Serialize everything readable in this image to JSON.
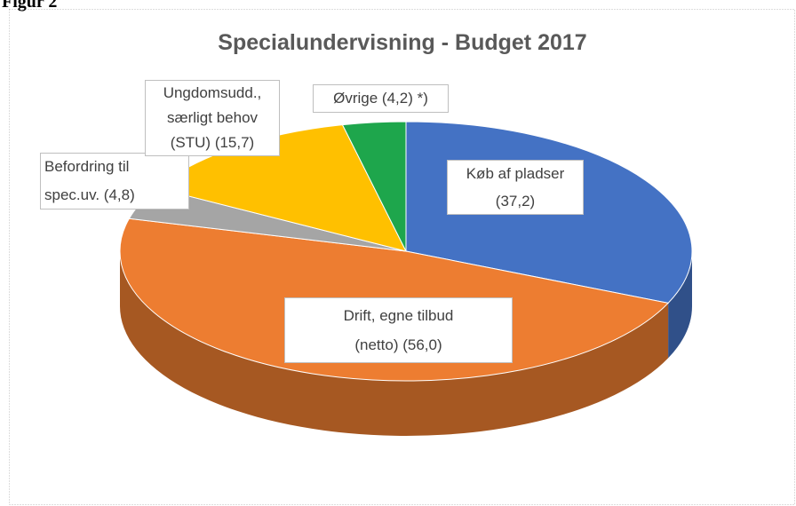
{
  "figure_label": "Figur 2",
  "chart_data": {
    "type": "pie",
    "three_d": true,
    "title": "Specialundervisning - Budget 2017",
    "categories": [
      "Køb af pladser",
      "Drift, egne tilbud (netto)",
      "Befordring til spec.uv.",
      "Ungdomsudd., særligt behov (STU)",
      "Øvrige"
    ],
    "values": [
      37.2,
      56.0,
      4.8,
      15.7,
      4.2
    ],
    "value_labels": [
      "(37,2)",
      "(56,0)",
      "(4,8)",
      "(15,7)",
      "(4,2)"
    ],
    "colors": [
      "#4472c4",
      "#ed7d31",
      "#a5a5a5",
      "#ffc000",
      "#1ea64c"
    ],
    "annotation": "*)"
  }
}
